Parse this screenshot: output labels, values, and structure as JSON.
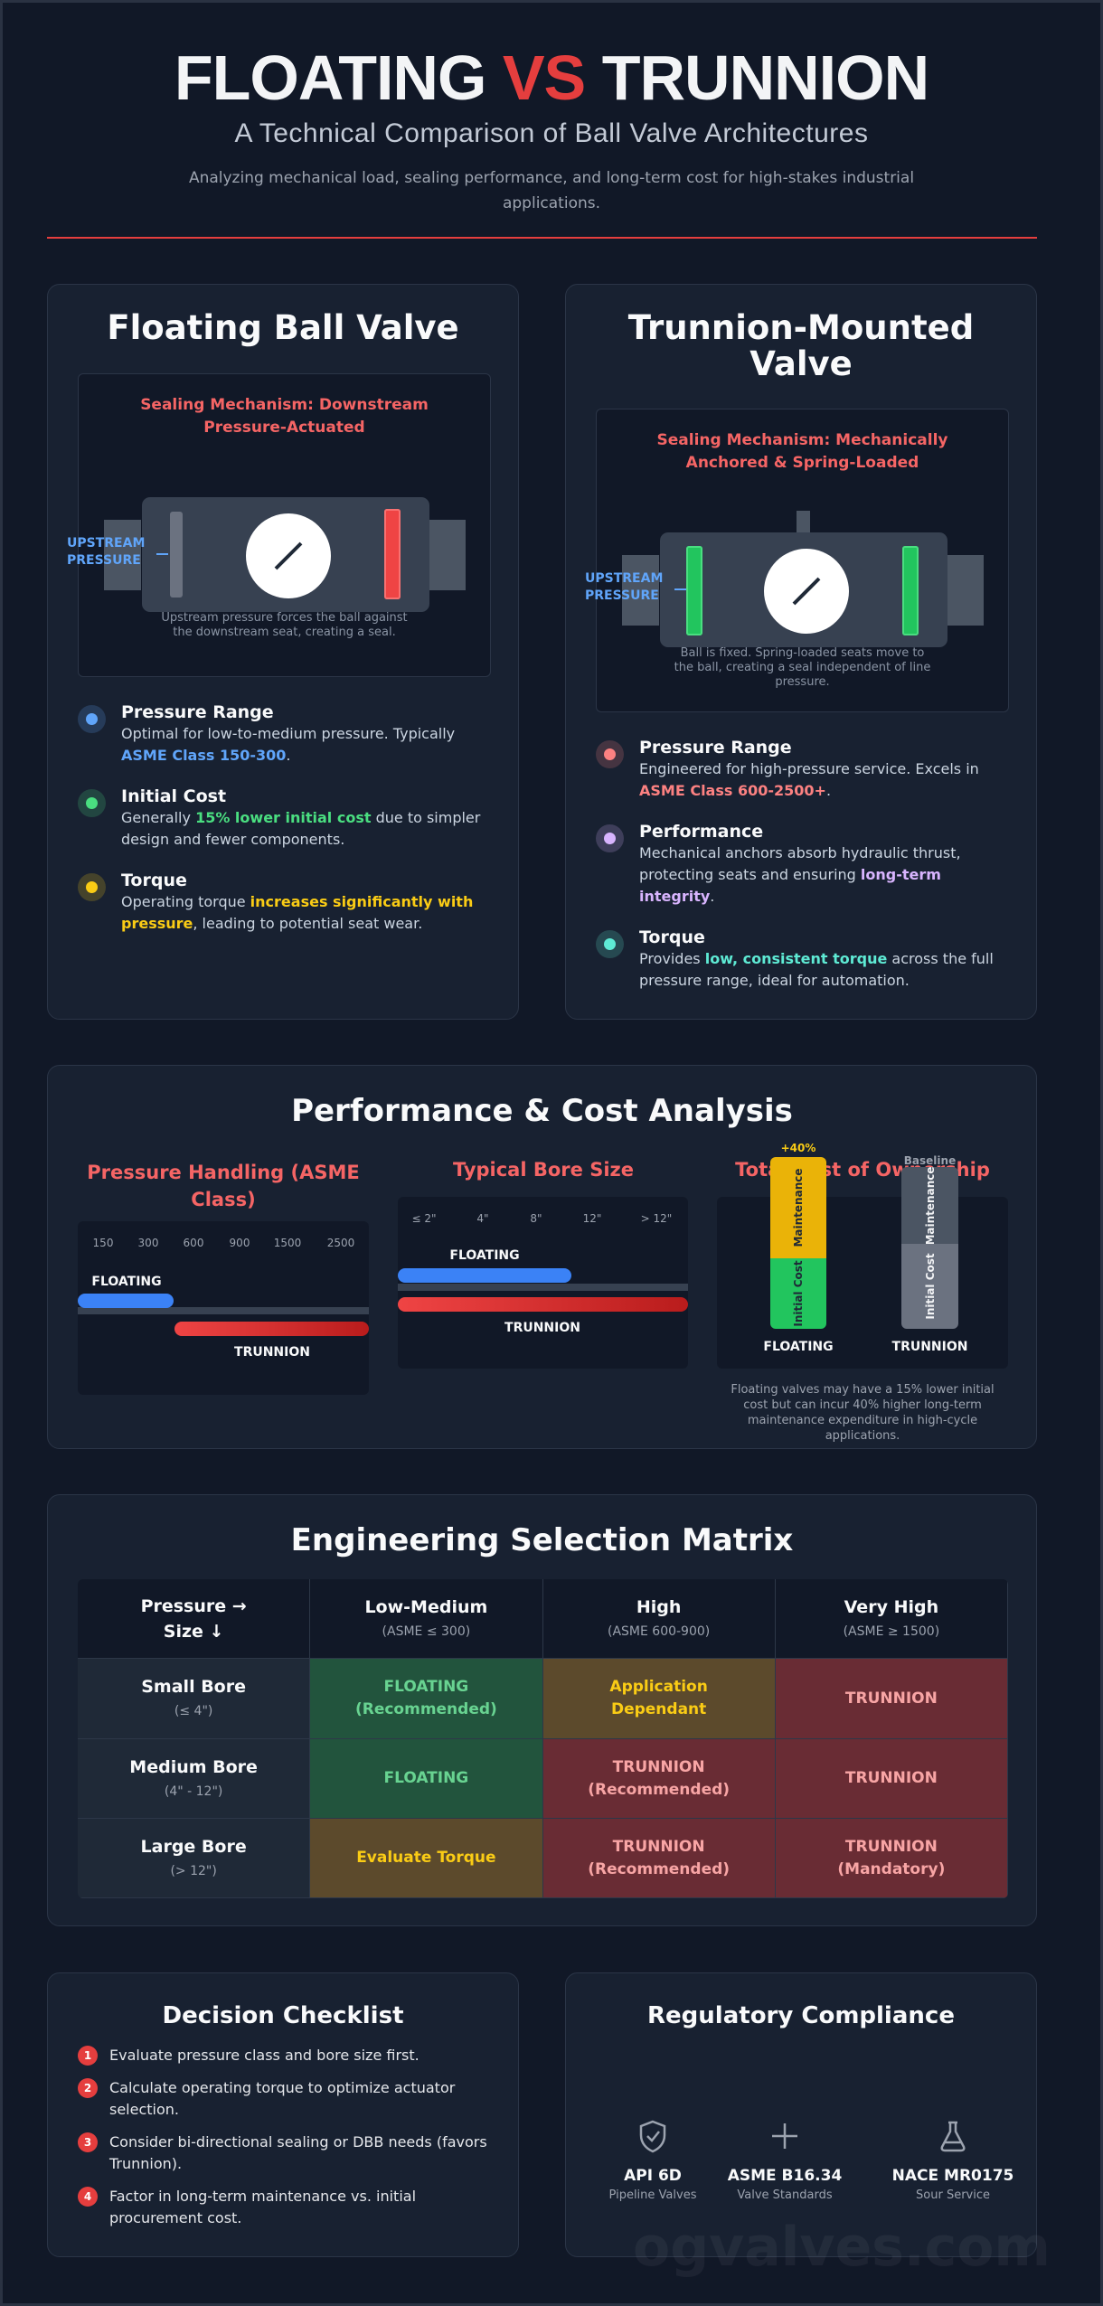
{
  "header": {
    "title": [
      "FLOATING",
      "VS",
      "TRUNNION"
    ],
    "subtitle": "A Technical Comparison of Ball Valve Architectures",
    "description": "Analyzing mechanical load, sealing performance, and long-term cost for high-stakes industrial applications."
  },
  "cards": [
    {
      "title": "Floating Ball Valve",
      "mechanism": "Sealing Mechanism: Downstream Pressure-Actuated",
      "upstream": "UPSTREAM PRESSURE",
      "caption": "Upstream pressure forces the ball against the downstream seat, creating a seal.",
      "features": [
        {
          "title": "Pressure Range",
          "color": "#60a5fa",
          "text": [
            "Optimal for low-to-medium pressure. Typically ",
            "ASME Class 150-300",
            "."
          ]
        },
        {
          "title": "Initial Cost",
          "color": "#4ade80",
          "text": [
            "Generally ",
            "15% lower initial cost",
            " due to simpler design and fewer components."
          ]
        },
        {
          "title": "Torque",
          "color": "#facc15",
          "text": [
            "Operating torque ",
            "increases significantly with pressure",
            ", leading to potential seat wear."
          ]
        }
      ]
    },
    {
      "title": "Trunnion-Mounted Valve",
      "mechanism": "Sealing Mechanism: Mechanically Anchored & Spring-Loaded",
      "upstream": "UPSTREAM PRESSURE",
      "caption": "Ball is fixed. Spring-loaded seats move to the ball, creating a seal independent of line pressure.",
      "features": [
        {
          "title": "Pressure Range",
          "color": "#fc8181",
          "text": [
            "Engineered for high-pressure service. Excels in ",
            "ASME Class 600-2500+",
            "."
          ]
        },
        {
          "title": "Performance",
          "color": "#d8b4fe",
          "text": [
            "Mechanical anchors absorb hydraulic thrust, protecting seats and ensuring ",
            "long-term integrity",
            "."
          ]
        },
        {
          "title": "Torque",
          "color": "#5eead4",
          "text": [
            "Provides ",
            "low, consistent torque",
            " across the full pressure range, ideal for automation."
          ]
        }
      ]
    }
  ],
  "performance": {
    "title": "Performance & Cost Analysis",
    "pressure": {
      "title": "Pressure Handling (ASME Class)",
      "ticks": [
        "150",
        "300",
        "600",
        "900",
        "1500",
        "2500"
      ],
      "floating": "FLOATING",
      "trunnion": "TRUNNION"
    },
    "bore": {
      "title": "Typical Bore Size",
      "ticks": [
        "≤ 2\"",
        "4\"",
        "8\"",
        "12\"",
        "> 12\""
      ],
      "floating": "FLOATING",
      "trunnion": "TRUNNION"
    },
    "cost": {
      "title": "Total Cost of Ownership",
      "floating": {
        "label": "FLOATING",
        "delta": "+40%",
        "maintenance": "Maintenance",
        "initial": "Initial Cost"
      },
      "trunnion": {
        "label": "TRUNNION",
        "delta": "Baseline",
        "maintenance": "Maintenance",
        "initial": "Initial Cost"
      },
      "note": "Floating valves may have a 15% lower initial cost but can incur 40% higher long-term maintenance expenditure in high-cycle applications."
    }
  },
  "matrix": {
    "title": "Engineering Selection Matrix",
    "corner": [
      "Pressure →",
      "Size ↓"
    ],
    "columns": [
      {
        "title": "Low-Medium",
        "sub": "(ASME ≤ 300)"
      },
      {
        "title": "High",
        "sub": "(ASME 600-900)"
      },
      {
        "title": "Very High",
        "sub": "(ASME ≥ 1500)"
      }
    ],
    "rows": [
      {
        "title": "Small Bore",
        "sub": "(≤ 4\")",
        "cells": [
          {
            "text": "FLOATING (Recommended)",
            "color": "#22543d"
          },
          {
            "text": "Application Dependant",
            "color": "#5c4a2c"
          },
          {
            "text": "TRUNNION",
            "color": "#692c34"
          }
        ]
      },
      {
        "title": "Medium Bore",
        "sub": "(4\" - 12\")",
        "cells": [
          {
            "text": "FLOATING",
            "color": "#22543d"
          },
          {
            "text": "TRUNNION (Recommended)",
            "color": "#692c34"
          },
          {
            "text": "TRUNNION",
            "color": "#692c34"
          }
        ]
      },
      {
        "title": "Large Bore",
        "sub": "(> 12\")",
        "cells": [
          {
            "text": "Evaluate Torque",
            "color": "#5c4a2c"
          },
          {
            "text": "TRUNNION (Recommended)",
            "color": "#692c34"
          },
          {
            "text": "TRUNNION (Mandatory)",
            "color": "#692c34"
          }
        ]
      }
    ]
  },
  "checklist": {
    "title": "Decision Checklist",
    "items": [
      {
        "number": 1,
        "text": "Evaluate pressure class and bore size first."
      },
      {
        "number": 2,
        "text": "Calculate operating torque to optimize actuator selection."
      },
      {
        "number": 3,
        "text": "Consider bi-directional sealing or DBB needs (favors Trunnion)."
      },
      {
        "number": 4,
        "text": "Factor in long-term maintenance vs. initial procurement cost."
      }
    ]
  },
  "compliance": {
    "title": "Regulatory Compliance",
    "items": [
      {
        "name": "API 6D",
        "sub": "Pipeline Valves"
      },
      {
        "name": "ASME B16.34",
        "sub": "Valve Standards"
      },
      {
        "name": "NACE MR0175",
        "sub": "Sour Service"
      }
    ]
  },
  "watermark": "ogvalves.com"
}
